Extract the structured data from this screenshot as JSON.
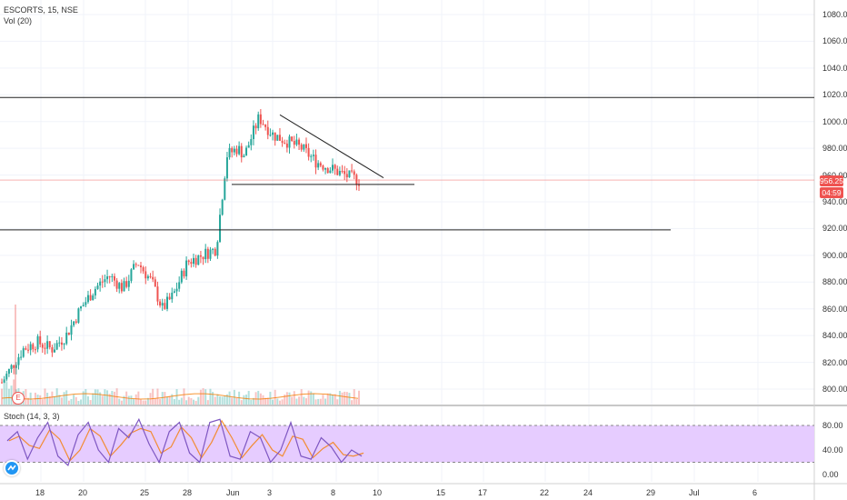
{
  "header": {
    "symbol_line": "ESCORTS, 15, NSE",
    "volume_label": "Vol (20)"
  },
  "oscillator": {
    "label": "Stoch (14, 3, 3)",
    "axis_ticks": [
      "80.00",
      "40.00",
      "0.00"
    ]
  },
  "price_axis": {
    "ticks": [
      "1080.00",
      "1060.00",
      "1040.00",
      "1020.00",
      "1000.00",
      "980.00",
      "960.00",
      "940.00",
      "920.00",
      "900.00",
      "880.00",
      "860.00",
      "840.00",
      "820.00",
      "800.00"
    ],
    "current_price": "956.25",
    "countdown": "04:59"
  },
  "time_axis": {
    "ticks": [
      "18",
      "20",
      "25",
      "28",
      "Jun",
      "3",
      "8",
      "10",
      "15",
      "17",
      "22",
      "24",
      "29",
      "Jul",
      "6"
    ]
  },
  "event_marker": "E",
  "colors": {
    "up": "#26a69a",
    "down": "#ef5350",
    "price_tag": "#ef5350",
    "stoch_band": "#e6ccff",
    "stoch_k": "#7e57c2",
    "stoch_d": "#f57c00"
  },
  "chart_data": [
    {
      "type": "line",
      "title": "",
      "description_ohlc_anchors": "approximate close path",
      "x_range_labels": [
        "18",
        "20",
        "25",
        "28",
        "Jun",
        "3",
        "8",
        "10"
      ],
      "ylim": [
        790,
        1090
      ],
      "anchors": [
        [
          0,
          805
        ],
        [
          0.06,
          830
        ],
        [
          0.1,
          835
        ],
        [
          0.14,
          830
        ],
        [
          0.18,
          840
        ],
        [
          0.22,
          860
        ],
        [
          0.26,
          875
        ],
        [
          0.3,
          885
        ],
        [
          0.34,
          875
        ],
        [
          0.38,
          895
        ],
        [
          0.42,
          880
        ],
        [
          0.45,
          860
        ],
        [
          0.48,
          870
        ],
        [
          0.52,
          895
        ],
        [
          0.56,
          900
        ],
        [
          0.6,
          905
        ],
        [
          0.63,
          975
        ],
        [
          0.66,
          980
        ],
        [
          0.68,
          975
        ],
        [
          0.72,
          1003
        ],
        [
          0.76,
          990
        ],
        [
          0.8,
          985
        ],
        [
          0.84,
          980
        ],
        [
          0.88,
          970
        ],
        [
          0.92,
          965
        ],
        [
          0.96,
          960
        ],
        [
          1.0,
          956
        ]
      ],
      "levels": [
        1018,
        919,
        956.25
      ]
    },
    {
      "type": "line",
      "title": "",
      "series": [
        {
          "name": "Stoch",
          "values": [
            55,
            70,
            25,
            60,
            85,
            30,
            15,
            65,
            85,
            40,
            20,
            75,
            60,
            90,
            50,
            20,
            70,
            85,
            35,
            20,
            85,
            90,
            30,
            25,
            70,
            60,
            20,
            40,
            85,
            30,
            25,
            60,
            45,
            20,
            40,
            30
          ]
        }
      ],
      "ylim": [
        0,
        100
      ]
    }
  ]
}
